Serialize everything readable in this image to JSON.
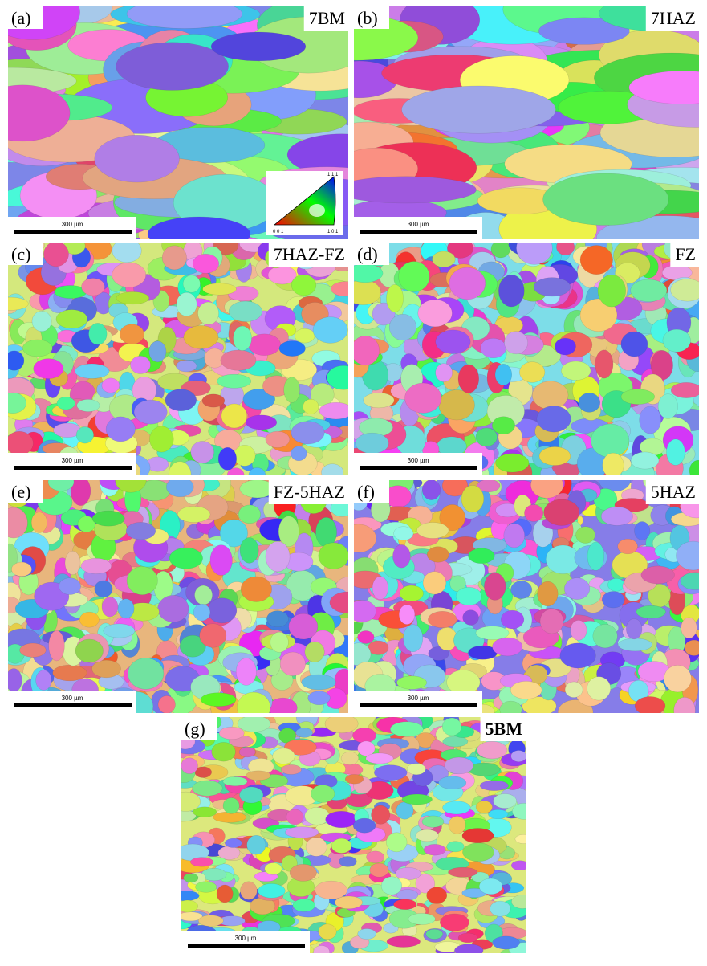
{
  "panels": [
    {
      "letter": "(a)",
      "label": "7BM",
      "scale_bar": "300 µm"
    },
    {
      "letter": "(b)",
      "label": "7HAZ",
      "scale_bar": "300 µm"
    },
    {
      "letter": "(c)",
      "label": "7HAZ-FZ",
      "scale_bar": "300 µm"
    },
    {
      "letter": "(d)",
      "label": "FZ",
      "scale_bar": "300 µm"
    },
    {
      "letter": "(e)",
      "label": "FZ-5HAZ",
      "scale_bar": "300 µm"
    },
    {
      "letter": "(f)",
      "label": "5HAZ",
      "scale_bar": "300 µm"
    },
    {
      "letter": "(g)",
      "label": "5BM",
      "scale_bar": "300 µm"
    }
  ],
  "ipf_legend": {
    "corners": [
      "0 0 1",
      "1 0 1",
      "1 1 1"
    ]
  }
}
